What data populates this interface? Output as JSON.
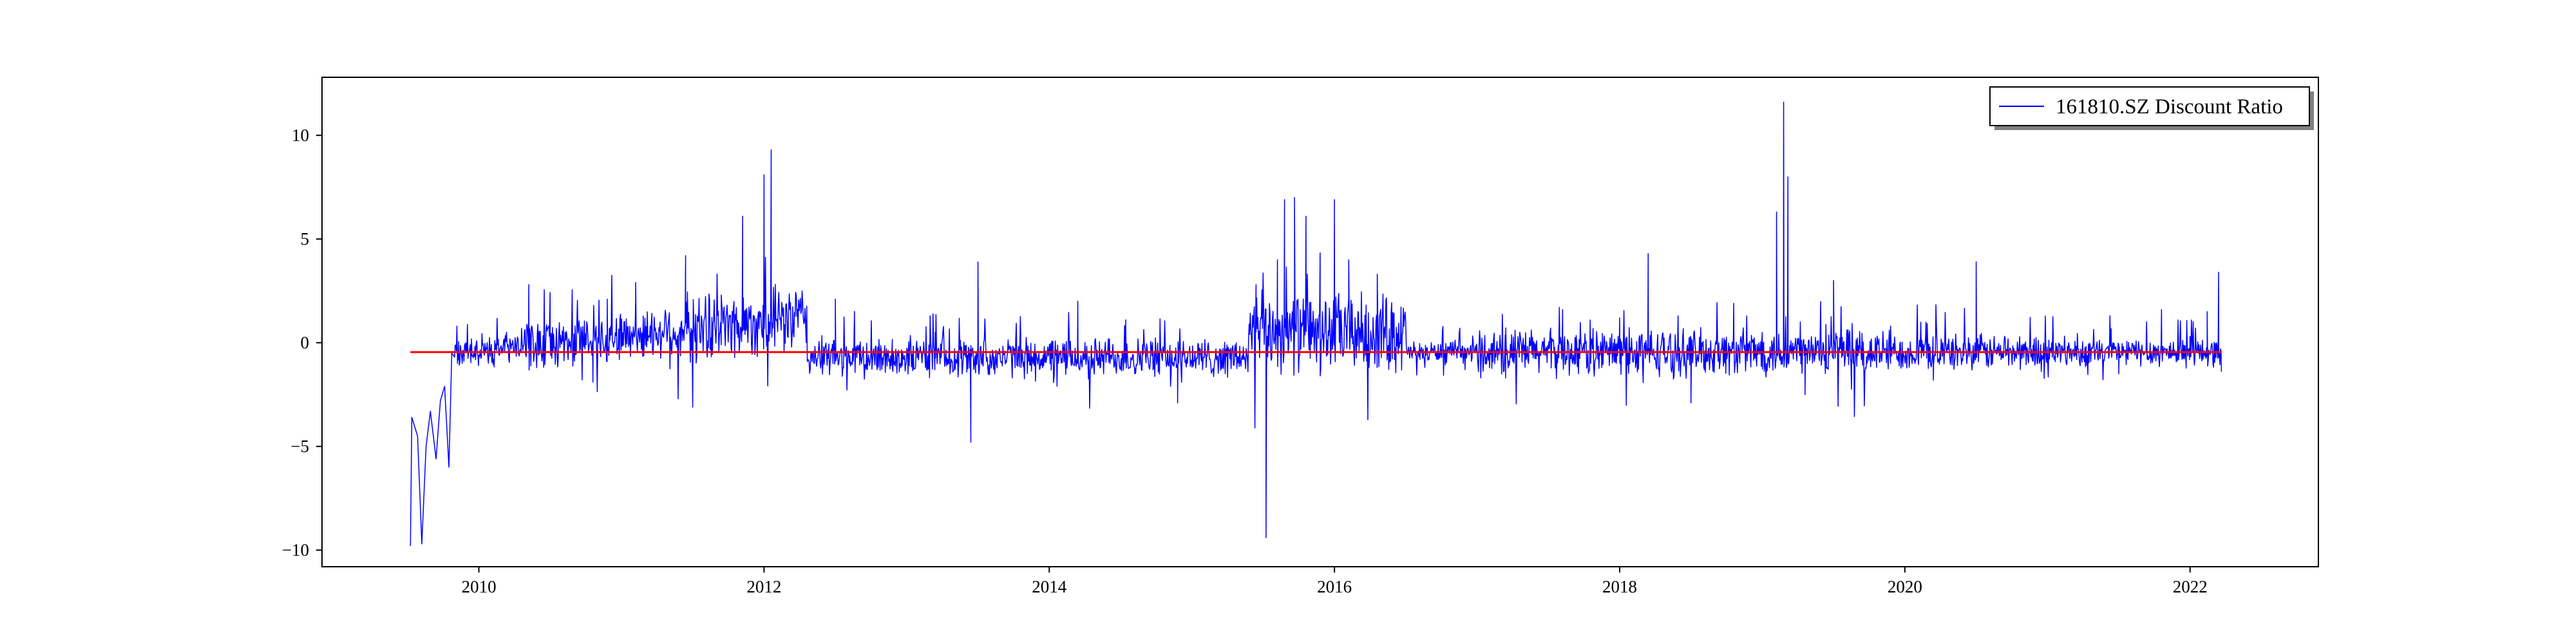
{
  "chart_data": {
    "type": "line",
    "title": "",
    "xlabel": "",
    "ylabel": "",
    "xlim": [
      2008.9,
      2022.9
    ],
    "ylim": [
      -10.8,
      12.8
    ],
    "x_ticks": [
      2010,
      2012,
      2014,
      2016,
      2018,
      2020,
      2022
    ],
    "x_tick_labels": [
      "2010",
      "2012",
      "2014",
      "2016",
      "2018",
      "2020",
      "2022"
    ],
    "y_ticks": [
      -10,
      -5,
      0,
      5,
      10
    ],
    "y_tick_labels": [
      "−10",
      "−5",
      "0",
      "5",
      "10"
    ],
    "grid": false,
    "legend": {
      "position": "top-right",
      "entries": [
        "161810.SZ Discount Ratio"
      ]
    },
    "series": [
      {
        "name": "161810.SZ Discount Ratio",
        "color": "#0000ff",
        "kind": "daily-line",
        "x_start": 2009.52,
        "x_end": 2022.22,
        "points": [
          [
            2009.52,
            -9.8
          ],
          [
            2009.53,
            -3.6
          ],
          [
            2009.57,
            -4.5
          ],
          [
            2009.6,
            -9.7
          ],
          [
            2009.63,
            -5.0
          ],
          [
            2009.66,
            -3.3
          ],
          [
            2009.7,
            -5.6
          ],
          [
            2009.73,
            -2.8
          ],
          [
            2009.76,
            -2.1
          ],
          [
            2009.79,
            -6.0
          ],
          [
            2009.81,
            -0.5
          ],
          [
            2009.85,
            -1.0
          ],
          [
            2010.0,
            -0.6
          ],
          [
            2010.35,
            2.8
          ],
          [
            2010.5,
            0.2
          ],
          [
            2010.8,
            -1.9
          ],
          [
            2010.9,
            2.1
          ],
          [
            2011.1,
            2.9
          ],
          [
            2011.3,
            0.5
          ],
          [
            2011.45,
            4.2
          ],
          [
            2011.7,
            2.3
          ],
          [
            2011.85,
            6.1
          ],
          [
            2012.0,
            8.1
          ],
          [
            2012.05,
            9.3
          ],
          [
            2012.2,
            1.0
          ],
          [
            2012.5,
            2.1
          ],
          [
            2012.9,
            -1.2
          ],
          [
            2013.2,
            0.5
          ],
          [
            2013.45,
            -4.8
          ],
          [
            2013.5,
            3.9
          ],
          [
            2013.8,
            0.3
          ],
          [
            2014.2,
            2.0
          ],
          [
            2014.6,
            -1.5
          ],
          [
            2014.9,
            -2.9
          ],
          [
            2015.1,
            -1.2
          ],
          [
            2015.3,
            -0.3
          ],
          [
            2015.45,
            2.8
          ],
          [
            2015.52,
            -9.4
          ],
          [
            2015.6,
            4.0
          ],
          [
            2015.65,
            6.9
          ],
          [
            2015.72,
            7.0
          ],
          [
            2015.8,
            6.1
          ],
          [
            2015.9,
            -1.6
          ],
          [
            2016.0,
            6.9
          ],
          [
            2016.1,
            4.0
          ],
          [
            2016.3,
            3.3
          ],
          [
            2016.6,
            -0.8
          ],
          [
            2016.9,
            -0.5
          ],
          [
            2017.2,
            -1.7
          ],
          [
            2017.6,
            1.6
          ],
          [
            2018.0,
            1.2
          ],
          [
            2018.2,
            4.3
          ],
          [
            2018.5,
            -2.9
          ],
          [
            2018.8,
            1.9
          ],
          [
            2019.0,
            0.5
          ],
          [
            2019.1,
            6.3
          ],
          [
            2019.15,
            11.6
          ],
          [
            2019.18,
            8.0
          ],
          [
            2019.3,
            -2.5
          ],
          [
            2019.5,
            3.0
          ],
          [
            2019.9,
            0.8
          ],
          [
            2020.2,
            -1.8
          ],
          [
            2020.5,
            3.9
          ],
          [
            2020.9,
            -0.9
          ],
          [
            2021.2,
            -0.3
          ],
          [
            2021.5,
            -1.5
          ],
          [
            2021.8,
            1.6
          ],
          [
            2022.0,
            0.3
          ],
          [
            2022.12,
            1.5
          ],
          [
            2022.2,
            3.4
          ],
          [
            2022.22,
            -1.4
          ]
        ]
      },
      {
        "name": "",
        "color": "#ff0000",
        "kind": "constant-line",
        "x": [
          2009.52,
          2022.22
        ],
        "y": [
          -0.45,
          -0.45
        ]
      }
    ]
  }
}
